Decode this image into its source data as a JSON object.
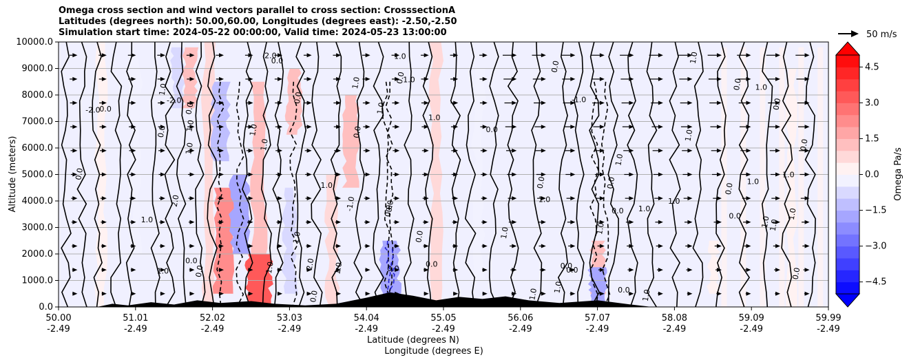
{
  "chart_data": {
    "type": "heatmap",
    "title_lines": [
      "Omega cross section and wind vectors parallel to cross section: CrosssectionA",
      "Latitudes (degrees north): 50.00,60.00, Longitudes (degrees east): -2.50,-2.50",
      "Simulation start time: 2024-05-22 00:00:00, Valid time: 2024-05-23 13:00:00"
    ],
    "ylabel": "Altitude (meters)",
    "xlabel_lines": [
      "Latitude (degrees N)",
      "Longitude (degrees E)"
    ],
    "x_ticks": [
      {
        "lat": "50.00",
        "lon": "-2.49"
      },
      {
        "lat": "51.01",
        "lon": "-2.49"
      },
      {
        "lat": "52.02",
        "lon": "-2.49"
      },
      {
        "lat": "53.03",
        "lon": "-2.49"
      },
      {
        "lat": "54.04",
        "lon": "-2.49"
      },
      {
        "lat": "55.05",
        "lon": "-2.49"
      },
      {
        "lat": "56.06",
        "lon": "-2.49"
      },
      {
        "lat": "57.07",
        "lon": "-2.49"
      },
      {
        "lat": "58.08",
        "lon": "-2.49"
      },
      {
        "lat": "59.09",
        "lon": "-2.49"
      },
      {
        "lat": "59.99",
        "lon": "-2.49"
      }
    ],
    "xlim": [
      50.0,
      59.99
    ],
    "y_ticks": [
      0,
      1000,
      2000,
      3000,
      4000,
      5000,
      6000,
      7000,
      8000,
      9000,
      10000
    ],
    "y_tick_labels": [
      "0.0",
      "1000.0",
      "2000.0",
      "3000.0",
      "4000.0",
      "5000.0",
      "6000.0",
      "7000.0",
      "8000.0",
      "9000.0",
      "10000.0"
    ],
    "ylim": [
      0,
      10000
    ],
    "grid": "horizontal",
    "colorbar": {
      "label": "Omega Pa/s",
      "range": [
        -5.0,
        5.0
      ],
      "ticks": [
        -4.5,
        -3.0,
        -1.5,
        0.0,
        1.5,
        3.0,
        4.5
      ],
      "tick_labels": [
        "−4.5",
        "−3.0",
        "−1.5",
        "0.0",
        "1.5",
        "3.0",
        "4.5"
      ],
      "levels": 20,
      "colormap": "bwr",
      "extend": "both"
    },
    "quiver_key": {
      "label": "50 m/s",
      "speed": 50
    },
    "contour_labels": [
      "0.0",
      "1.0",
      "-1.0",
      "2.0",
      "-2.0"
    ],
    "omega_features": [
      {
        "lat": 50.55,
        "alt_from": 0,
        "alt_to": 10000,
        "omega": 0.4
      },
      {
        "lat": 51.0,
        "alt_from": 2000,
        "alt_to": 9500,
        "omega": -0.4
      },
      {
        "lat": 51.55,
        "alt_from": 7500,
        "alt_to": 9800,
        "omega": -0.6
      },
      {
        "lat": 51.7,
        "alt_from": 7500,
        "alt_to": 9800,
        "omega": 1.0
      },
      {
        "lat": 51.95,
        "alt_from": 0,
        "alt_to": 10000,
        "omega": 0.6
      },
      {
        "lat": 52.1,
        "alt_from": 5500,
        "alt_to": 8500,
        "omega": -1.5
      },
      {
        "lat": 52.15,
        "alt_from": 500,
        "alt_to": 4500,
        "omega": 2.0
      },
      {
        "lat": 52.35,
        "alt_from": 2000,
        "alt_to": 5000,
        "omega": -1.8
      },
      {
        "lat": 52.6,
        "alt_from": 500,
        "alt_to": 8500,
        "omega": 1.2
      },
      {
        "lat": 52.6,
        "alt_from": 0,
        "alt_to": 2000,
        "omega": 3.0
      },
      {
        "lat": 53.05,
        "alt_from": 6500,
        "alt_to": 9000,
        "omega": 1.0
      },
      {
        "lat": 53.0,
        "alt_from": 500,
        "alt_to": 4500,
        "omega": -0.8
      },
      {
        "lat": 53.8,
        "alt_from": 4500,
        "alt_to": 8000,
        "omega": 1.2
      },
      {
        "lat": 53.55,
        "alt_from": 0,
        "alt_to": 5000,
        "omega": 0.6
      },
      {
        "lat": 54.3,
        "alt_from": 0,
        "alt_to": 2500,
        "omega": -2.0
      },
      {
        "lat": 54.9,
        "alt_from": 0,
        "alt_to": 10000,
        "omega": 0.5
      },
      {
        "lat": 55.45,
        "alt_from": 1000,
        "alt_to": 9000,
        "omega": -0.5
      },
      {
        "lat": 57.0,
        "alt_from": 0,
        "alt_to": 2500,
        "omega": 1.0
      },
      {
        "lat": 57.0,
        "alt_from": 0,
        "alt_to": 1500,
        "omega": -1.8
      },
      {
        "lat": 58.5,
        "alt_from": 500,
        "alt_to": 2500,
        "omega": 0.3
      },
      {
        "lat": 59.5,
        "alt_from": 0,
        "alt_to": 9000,
        "omega": 0.3
      }
    ],
    "terrain": [
      {
        "lat": 50.5,
        "alt": 0
      },
      {
        "lat": 50.7,
        "alt": 120
      },
      {
        "lat": 50.9,
        "alt": 60
      },
      {
        "lat": 51.2,
        "alt": 180
      },
      {
        "lat": 51.5,
        "alt": 90
      },
      {
        "lat": 51.8,
        "alt": 250
      },
      {
        "lat": 52.1,
        "alt": 150
      },
      {
        "lat": 52.5,
        "alt": 220
      },
      {
        "lat": 52.8,
        "alt": 120
      },
      {
        "lat": 53.2,
        "alt": 60
      },
      {
        "lat": 53.6,
        "alt": 120
      },
      {
        "lat": 54.0,
        "alt": 350
      },
      {
        "lat": 54.3,
        "alt": 550
      },
      {
        "lat": 54.6,
        "alt": 420
      },
      {
        "lat": 54.9,
        "alt": 250
      },
      {
        "lat": 55.2,
        "alt": 380
      },
      {
        "lat": 55.5,
        "alt": 300
      },
      {
        "lat": 55.8,
        "alt": 400
      },
      {
        "lat": 56.1,
        "alt": 250
      },
      {
        "lat": 56.5,
        "alt": 150
      },
      {
        "lat": 57.0,
        "alt": 250
      },
      {
        "lat": 57.4,
        "alt": 100
      },
      {
        "lat": 57.7,
        "alt": 0
      }
    ]
  }
}
